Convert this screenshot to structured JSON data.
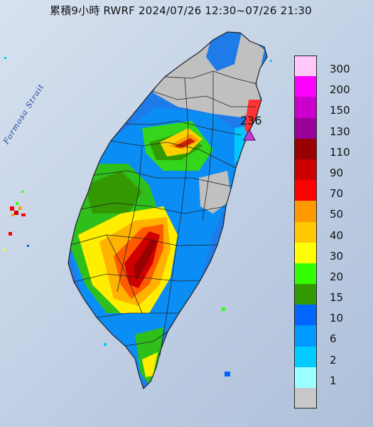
{
  "title": "累積9小時 RWRF 2024/07/26 12:30~07/26 21:30",
  "sea_label": "Formosa Strait",
  "max_rain_label": "236",
  "legend": [
    {
      "label": "300",
      "color": "#ffc8f8"
    },
    {
      "label": "200",
      "color": "#ff00ff"
    },
    {
      "label": "150",
      "color": "#cc00cc"
    },
    {
      "label": "130",
      "color": "#9a009a"
    },
    {
      "label": "110",
      "color": "#990000"
    },
    {
      "label": "90",
      "color": "#cc0000"
    },
    {
      "label": "70",
      "color": "#ff0000"
    },
    {
      "label": "50",
      "color": "#ff9900"
    },
    {
      "label": "40",
      "color": "#ffc800"
    },
    {
      "label": "30",
      "color": "#ffff00"
    },
    {
      "label": "20",
      "color": "#33ff00"
    },
    {
      "label": "15",
      "color": "#339900"
    },
    {
      "label": "10",
      "color": "#0066ff"
    },
    {
      "label": "6",
      "color": "#0099ff"
    },
    {
      "label": "2",
      "color": "#00ccff"
    },
    {
      "label": "1",
      "color": "#99ffff"
    },
    {
      "label": "",
      "color": "#c8c8c8"
    }
  ]
}
